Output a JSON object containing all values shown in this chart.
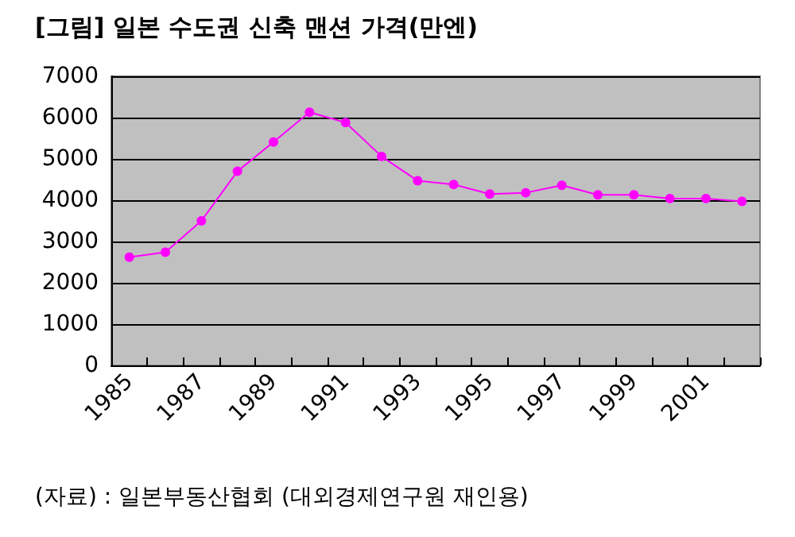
{
  "chart_data": {
    "type": "line",
    "title": "[그림] 일본 수도권 신축 맨션 가격(만엔)",
    "annotations": [
      "(자료) : 일본부동산협회 (대외경제연구원 재인용)"
    ],
    "categories": [
      "1985",
      null,
      "1987",
      null,
      "1989",
      null,
      "1991",
      null,
      "1993",
      null,
      "1995",
      null,
      "1997",
      null,
      "1999",
      null,
      "2001",
      null
    ],
    "series": [
      {
        "color": "#ff00ff",
        "values": [
          2620,
          2740,
          3500,
          4700,
          5410,
          6130,
          5880,
          5060,
          4470,
          4380,
          4150,
          4180,
          4360,
          4130,
          4130,
          4040,
          4040,
          3970
        ]
      }
    ],
    "ylim": [
      0,
      7000
    ],
    "yticks": [
      0,
      1000,
      2000,
      3000,
      4000,
      5000,
      6000,
      7000
    ],
    "grid": "y",
    "marker": "circle",
    "line_style": "solid"
  }
}
